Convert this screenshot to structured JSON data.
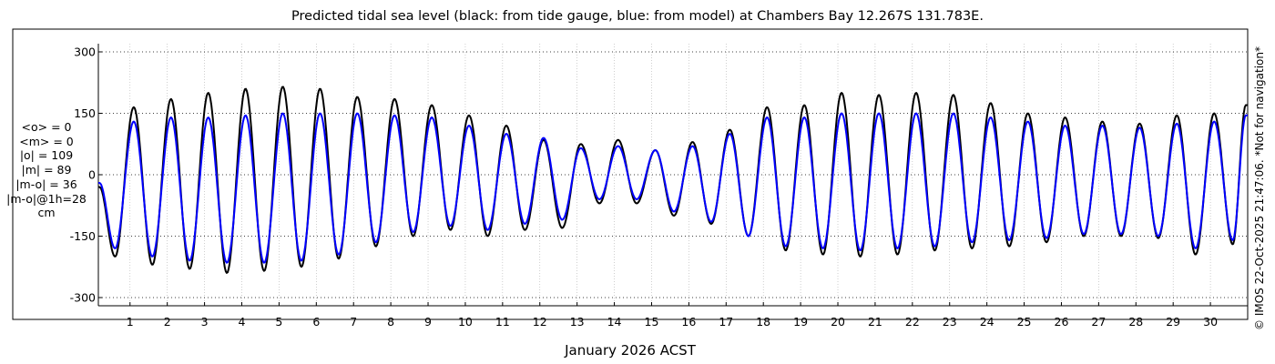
{
  "chart_data": {
    "type": "line",
    "title": "Predicted tidal sea level (black: from tide gauge, blue: from model) at Chambers Bay 12.267S 131.783E.",
    "xlabel": "January 2026 ACST",
    "ylabel": "",
    "x_unit": "day of January 2026",
    "xlim": [
      0.15,
      31.0
    ],
    "ylim": [
      -320,
      320
    ],
    "y_ticks": [
      -300,
      -150,
      0,
      150,
      300
    ],
    "x_ticks": [
      1,
      2,
      3,
      4,
      5,
      6,
      7,
      8,
      9,
      10,
      11,
      12,
      13,
      14,
      15,
      16,
      17,
      18,
      19,
      20,
      21,
      22,
      23,
      24,
      25,
      26,
      27,
      28,
      29,
      30
    ],
    "grid": "dotted",
    "series": [
      {
        "color": "#000000",
        "description_x": [
          0.18,
          0.6,
          1.1,
          1.6,
          2.1,
          2.6,
          3.1,
          3.6,
          4.1,
          4.6,
          5.1,
          5.6,
          6.1,
          6.6,
          7.1,
          7.6,
          8.1,
          8.6,
          9.1,
          9.6,
          10.1,
          10.6,
          11.1,
          11.6,
          12.1,
          12.6,
          13.1,
          13.6,
          14.1,
          14.6,
          15.1,
          15.6,
          16.1,
          16.6,
          17.1,
          17.6,
          18.1,
          18.6,
          19.1,
          19.6,
          20.1,
          20.6,
          21.1,
          21.6,
          22.1,
          22.6,
          23.1,
          23.6,
          24.1,
          24.6,
          25.1,
          25.6,
          26.1,
          26.6,
          27.1,
          27.6,
          28.1,
          28.6,
          29.1,
          29.6,
          30.1,
          30.6,
          30.95
        ],
        "description_y": [
          -30,
          -200,
          165,
          -220,
          185,
          -230,
          200,
          -240,
          210,
          -235,
          215,
          -225,
          210,
          -205,
          190,
          -175,
          185,
          -150,
          170,
          -135,
          145,
          -150,
          120,
          -135,
          85,
          -130,
          75,
          -70,
          85,
          -70,
          60,
          -100,
          80,
          -120,
          110,
          -150,
          165,
          -185,
          170,
          -195,
          200,
          -200,
          195,
          -195,
          200,
          -185,
          195,
          -180,
          175,
          -175,
          150,
          -165,
          140,
          -150,
          130,
          -150,
          125,
          -155,
          145,
          -195,
          150,
          -170,
          170
        ]
      },
      {
        "color": "#0000ff",
        "description_x": [
          0.18,
          0.6,
          1.1,
          1.6,
          2.1,
          2.6,
          3.1,
          3.6,
          4.1,
          4.6,
          5.1,
          5.6,
          6.1,
          6.6,
          7.1,
          7.6,
          8.1,
          8.6,
          9.1,
          9.6,
          10.1,
          10.6,
          11.1,
          11.6,
          12.1,
          12.6,
          13.1,
          13.6,
          14.1,
          14.6,
          15.1,
          15.6,
          16.1,
          16.6,
          17.1,
          17.6,
          18.1,
          18.6,
          19.1,
          19.6,
          20.1,
          20.6,
          21.1,
          21.6,
          22.1,
          22.6,
          23.1,
          23.6,
          24.1,
          24.6,
          25.1,
          25.6,
          26.1,
          26.6,
          27.1,
          27.6,
          28.1,
          28.6,
          29.1,
          29.6,
          30.1,
          30.6,
          30.95
        ],
        "description_y": [
          -20,
          -180,
          130,
          -200,
          140,
          -210,
          140,
          -215,
          145,
          -215,
          150,
          -210,
          150,
          -195,
          150,
          -165,
          145,
          -140,
          140,
          -125,
          120,
          -135,
          100,
          -120,
          90,
          -110,
          65,
          -60,
          70,
          -60,
          60,
          -90,
          70,
          -115,
          100,
          -150,
          140,
          -175,
          140,
          -180,
          150,
          -185,
          150,
          -180,
          150,
          -175,
          150,
          -165,
          140,
          -160,
          130,
          -155,
          120,
          -145,
          120,
          -145,
          115,
          -150,
          125,
          -180,
          130,
          -160,
          145
        ]
      }
    ]
  },
  "stats": {
    "mean_o": "<o> = 0",
    "mean_m": "<m> = 0",
    "abs_o": "|o| = 109",
    "abs_m": "|m| = 89",
    "abs_diff": "|m-o| = 36",
    "abs_diff_1h": "|m-o|@1h=28",
    "unit": "cm"
  },
  "side_note": "© IMOS 22-Oct-2025 21:47:06. *Not for navigation*"
}
